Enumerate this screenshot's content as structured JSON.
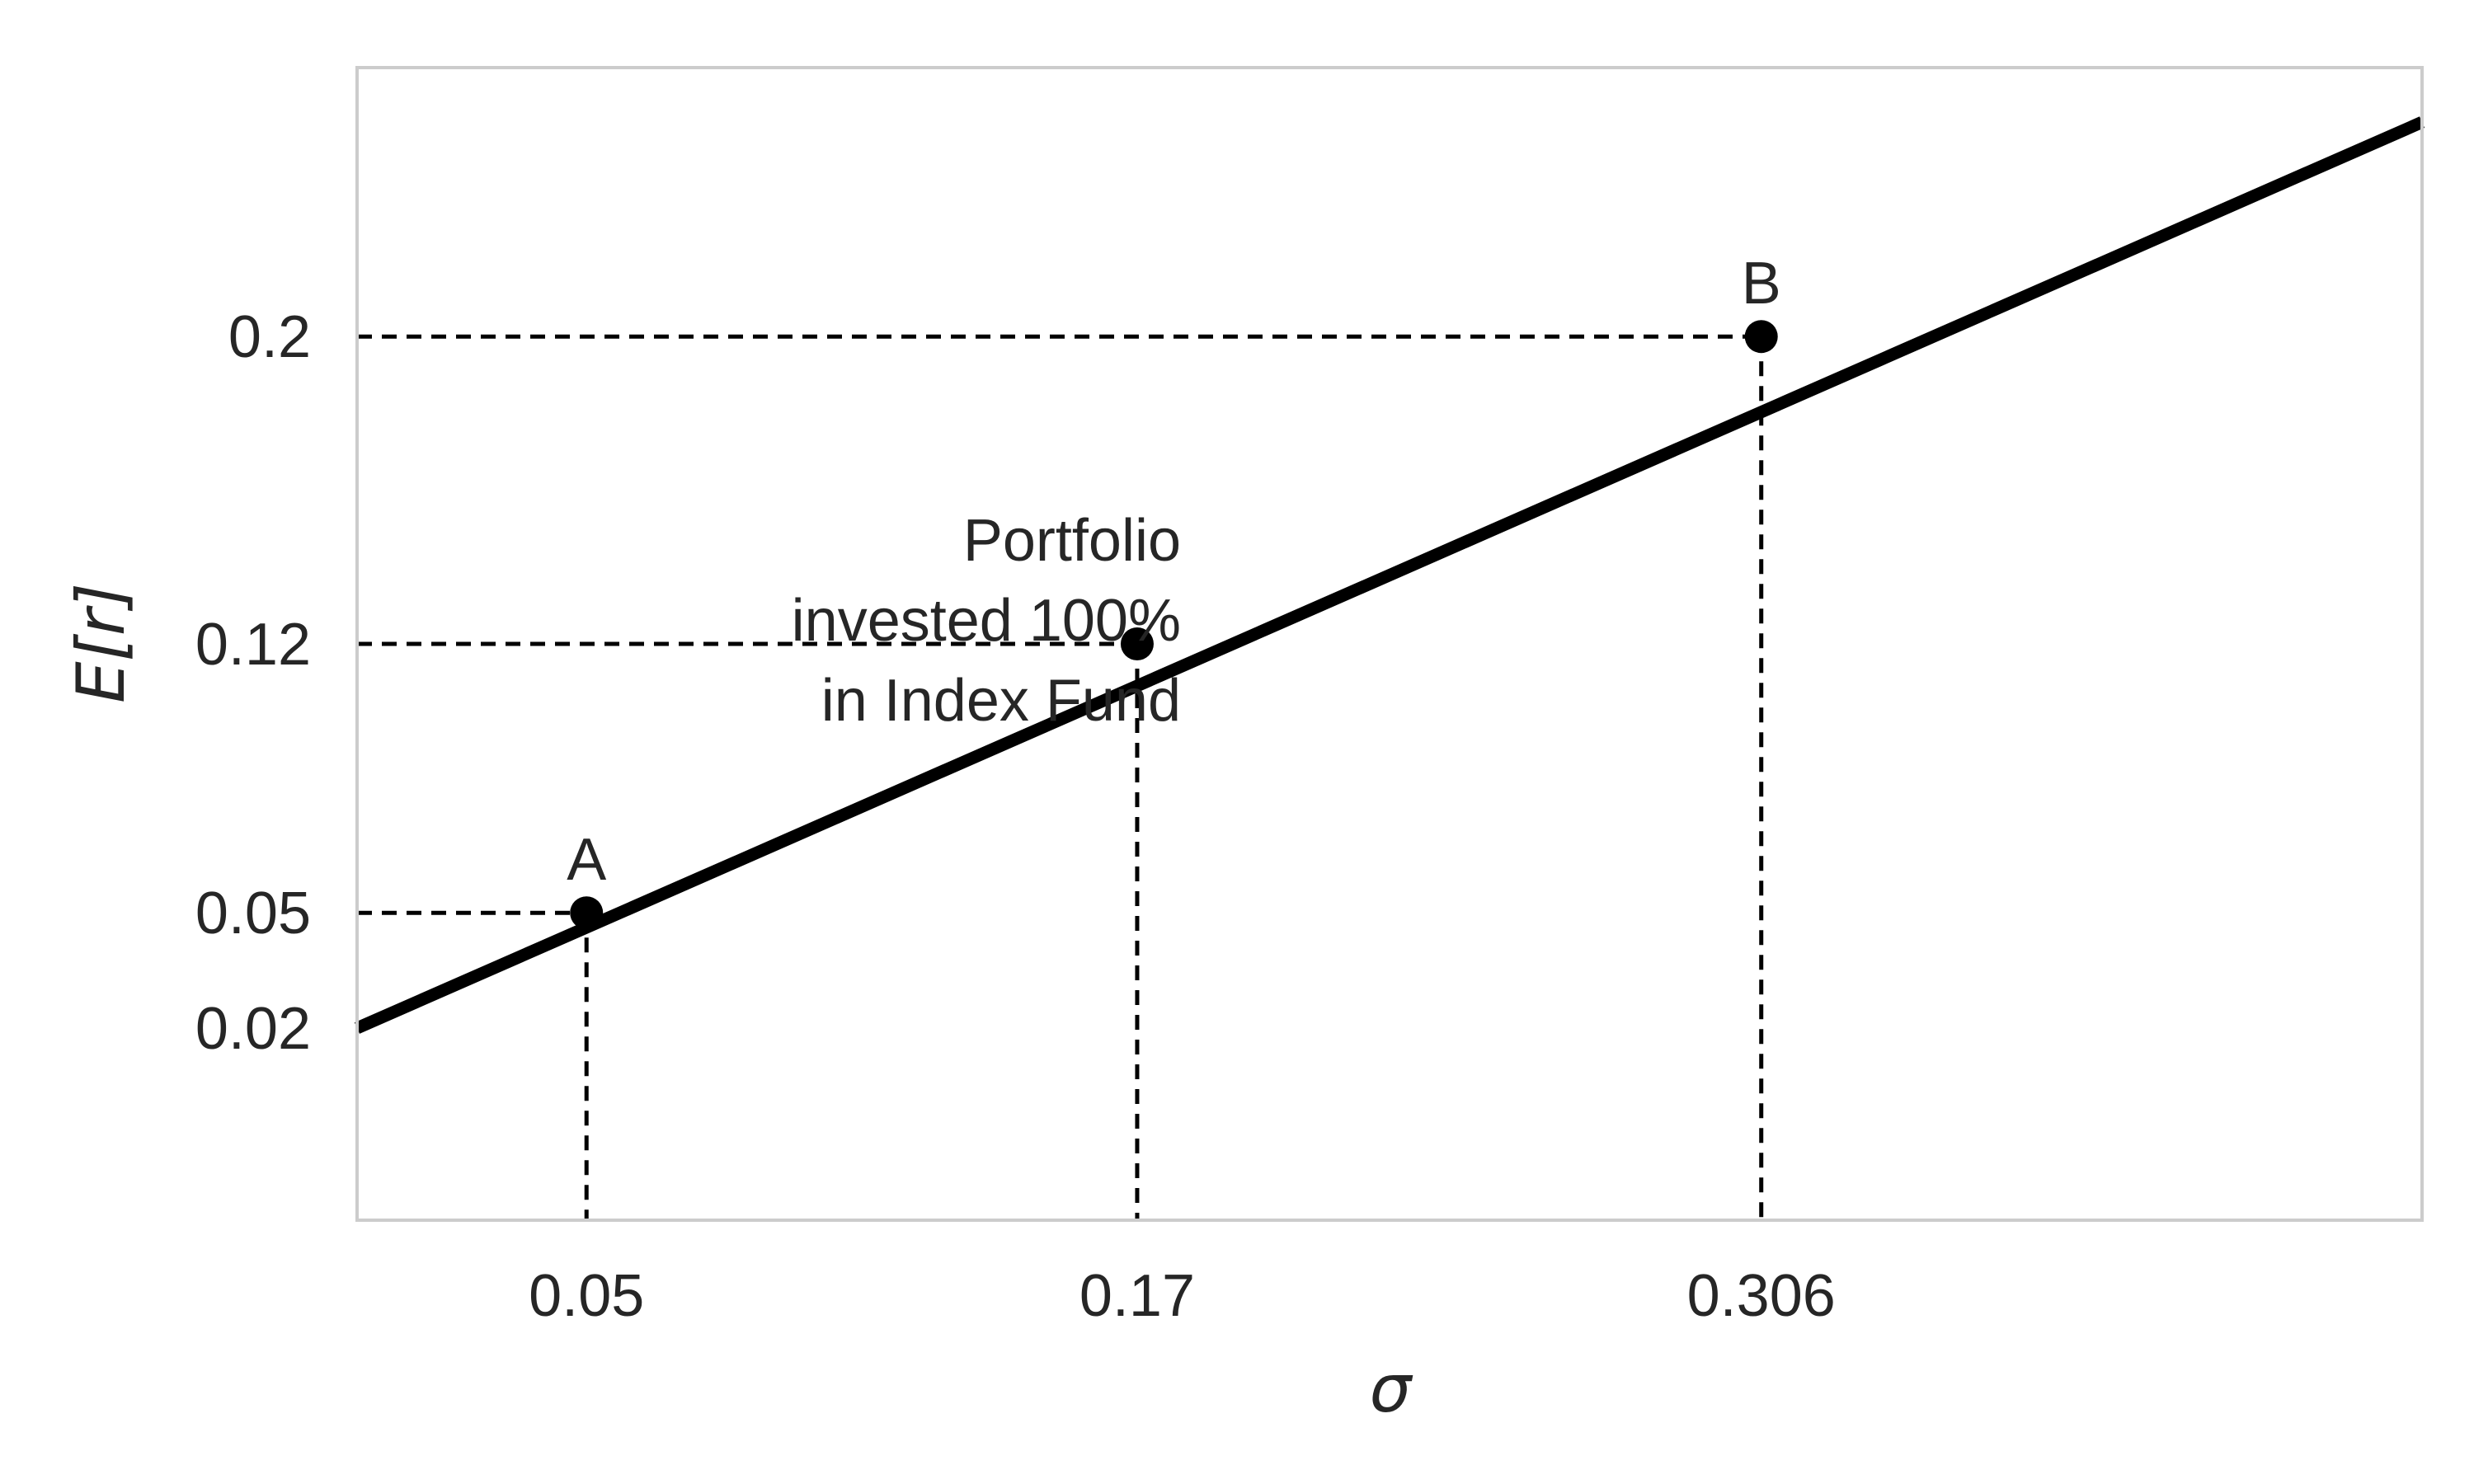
{
  "chart_data": {
    "type": "line",
    "title": "",
    "xlabel": "σ",
    "ylabel": "E[r]",
    "xlim": [
      0.0,
      0.45
    ],
    "ylim": [
      -0.03,
      0.27
    ],
    "grid": false,
    "line_color": "#000000",
    "guide_color": "#000000",
    "frame_color": "#cccccc",
    "series": [
      {
        "x": [
          0.0,
          0.45
        ],
        "y": [
          0.02,
          0.2558
        ]
      }
    ],
    "points": [
      {
        "x": 0.05,
        "y": 0.05,
        "label": "A"
      },
      {
        "x": 0.17,
        "y": 0.12,
        "label": ""
      },
      {
        "x": 0.306,
        "y": 0.2,
        "label": "B"
      }
    ],
    "xticks": [
      0.05,
      0.17,
      0.306
    ],
    "xtick_labels": [
      "0.05",
      "0.17",
      "0.306"
    ],
    "yticks": [
      0.02,
      0.05,
      0.12,
      0.2
    ],
    "ytick_labels": [
      "0.02",
      "0.05",
      "0.12",
      "0.2"
    ],
    "annotations": [
      {
        "lines": [
          "Portfolio",
          "invested 100%",
          "in Index Fund"
        ]
      }
    ]
  }
}
